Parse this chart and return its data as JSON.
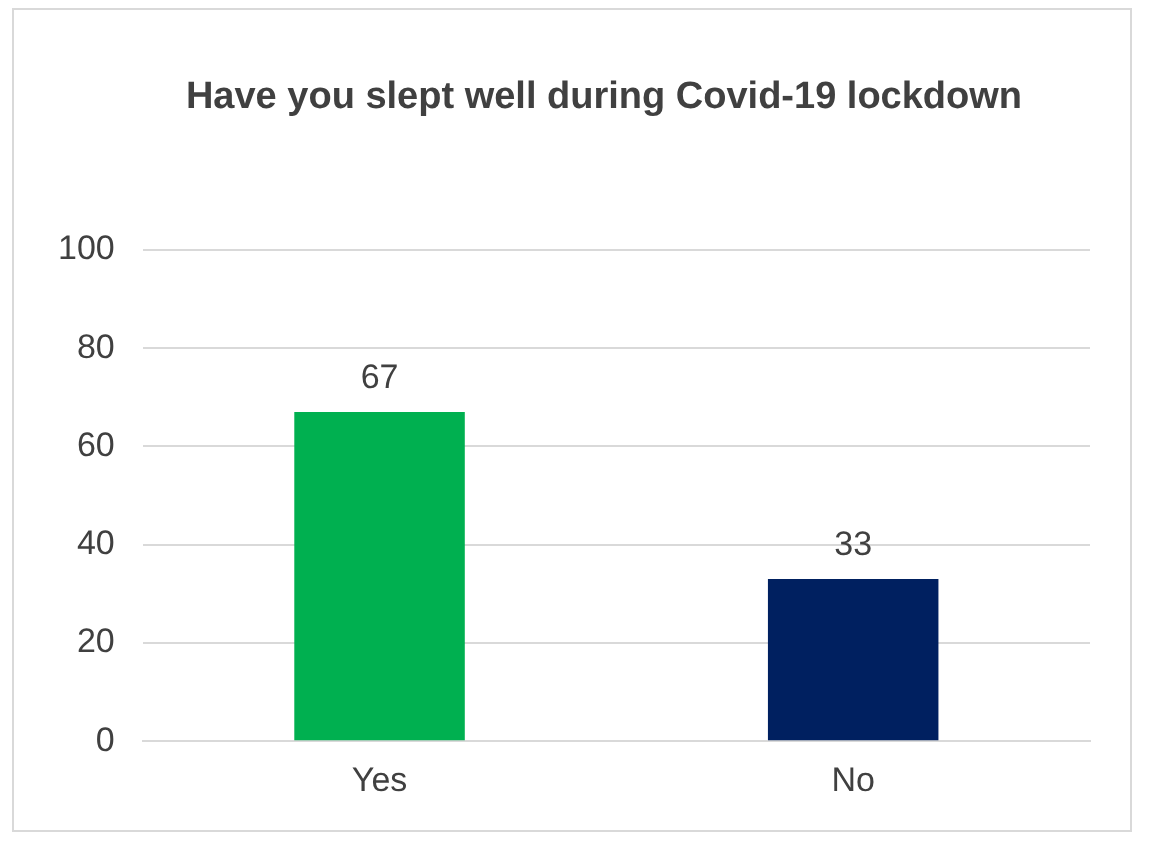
{
  "chart_data": {
    "type": "bar",
    "title": "Have you slept well during Covid-19 lockdown",
    "categories": [
      "Yes",
      "No"
    ],
    "values": [
      67,
      33
    ],
    "colors": [
      "#00b050",
      "#002060"
    ],
    "ylim": [
      0,
      100
    ],
    "yticks": [
      0,
      20,
      40,
      60,
      80,
      100
    ],
    "grid": "y",
    "data_labels": true,
    "legend": false
  }
}
